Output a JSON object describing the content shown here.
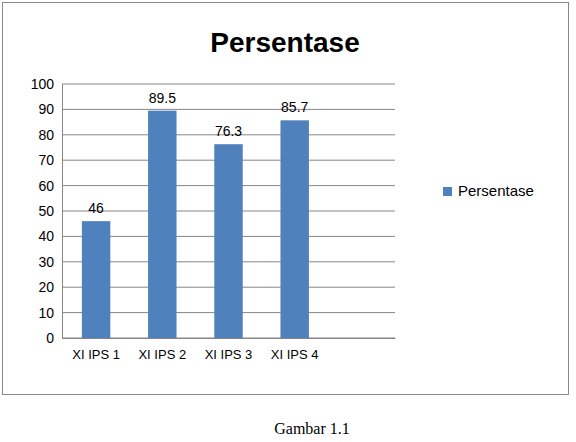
{
  "chart_data": {
    "type": "bar",
    "title": "Persentase",
    "categories": [
      "XI IPS 1",
      "XI IPS 2",
      "XI IPS 3",
      "XI IPS 4",
      null
    ],
    "series": [
      {
        "name": "Persentase",
        "color": "#4f81bd",
        "values": [
          46,
          89.5,
          76.3,
          85.7,
          null
        ]
      }
    ],
    "ylim": [
      0,
      100
    ],
    "yticks": [
      0,
      10,
      20,
      30,
      40,
      50,
      60,
      70,
      80,
      90,
      100
    ],
    "grid": true,
    "legend": "right",
    "data_labels": true
  },
  "caption": "Gambar 1.1"
}
